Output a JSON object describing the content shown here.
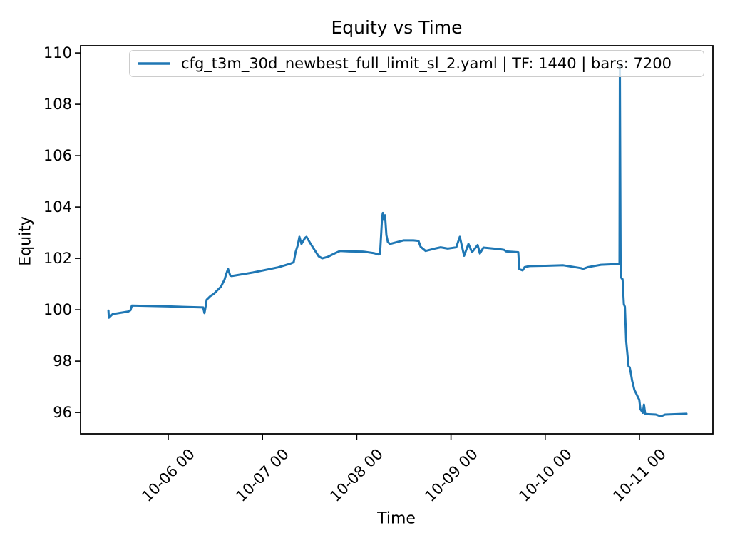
{
  "colors": {
    "line": "#1f77b4",
    "axis": "#000000",
    "legend_border": "#cccccc",
    "background": "#ffffff"
  },
  "chart_data": {
    "type": "line",
    "title": "Equity vs Time",
    "xlabel": "Time",
    "ylabel": "Equity",
    "legend_position": "upper center",
    "legend": [
      "cfg_t3m_30d_newbest_full_limit_sl_2.yaml | TF: 1440 | bars: 7200"
    ],
    "grid": false,
    "x_unit": "days since 10-06 00:00",
    "xlim": [
      -0.9304,
      5.7791
    ],
    "ylim": [
      95.17,
      110.28
    ],
    "x_ticks": [
      {
        "value": 0,
        "label": "10-06 00"
      },
      {
        "value": 1,
        "label": "10-07 00"
      },
      {
        "value": 2,
        "label": "10-08 00"
      },
      {
        "value": 3,
        "label": "10-09 00"
      },
      {
        "value": 4,
        "label": "10-10 00"
      },
      {
        "value": 5,
        "label": "10-11 00"
      }
    ],
    "y_ticks": [
      {
        "value": 96,
        "label": "96"
      },
      {
        "value": 98,
        "label": "98"
      },
      {
        "value": 100,
        "label": "100"
      },
      {
        "value": 102,
        "label": "102"
      },
      {
        "value": 104,
        "label": "104"
      },
      {
        "value": 106,
        "label": "106"
      },
      {
        "value": 108,
        "label": "108"
      },
      {
        "value": 110,
        "label": "110"
      }
    ],
    "series": [
      {
        "name": "cfg_t3m_30d_newbest_full_limit_sl_2.yaml | TF: 1440 | bars: 7200",
        "color": "#1f77b4",
        "points": [
          [
            -0.635,
            99.97
          ],
          [
            -0.63,
            99.69
          ],
          [
            -0.59,
            99.83
          ],
          [
            -0.424,
            99.93
          ],
          [
            -0.401,
            99.98
          ],
          [
            -0.386,
            100.16
          ],
          [
            0.0,
            100.13
          ],
          [
            0.371,
            100.09
          ],
          [
            0.384,
            99.87
          ],
          [
            0.393,
            100.05
          ],
          [
            0.408,
            100.39
          ],
          [
            0.446,
            100.53
          ],
          [
            0.484,
            100.62
          ],
          [
            0.522,
            100.76
          ],
          [
            0.56,
            100.9
          ],
          [
            0.598,
            101.18
          ],
          [
            0.613,
            101.36
          ],
          [
            0.635,
            101.59
          ],
          [
            0.658,
            101.33
          ],
          [
            0.673,
            101.31
          ],
          [
            0.9,
            101.45
          ],
          [
            1.165,
            101.65
          ],
          [
            1.301,
            101.8
          ],
          [
            1.331,
            101.85
          ],
          [
            1.352,
            102.25
          ],
          [
            1.374,
            102.5
          ],
          [
            1.392,
            102.84
          ],
          [
            1.414,
            102.56
          ],
          [
            1.452,
            102.8
          ],
          [
            1.467,
            102.84
          ],
          [
            1.505,
            102.6
          ],
          [
            1.543,
            102.38
          ],
          [
            1.596,
            102.08
          ],
          [
            1.634,
            102.0
          ],
          [
            1.694,
            102.06
          ],
          [
            1.77,
            102.2
          ],
          [
            1.823,
            102.29
          ],
          [
            1.921,
            102.27
          ],
          [
            2.073,
            102.26
          ],
          [
            2.186,
            102.2
          ],
          [
            2.232,
            102.15
          ],
          [
            2.247,
            102.18
          ],
          [
            2.269,
            103.6
          ],
          [
            2.277,
            103.77
          ],
          [
            2.288,
            103.5
          ],
          [
            2.3,
            103.68
          ],
          [
            2.315,
            102.9
          ],
          [
            2.33,
            102.64
          ],
          [
            2.352,
            102.56
          ],
          [
            2.413,
            102.62
          ],
          [
            2.496,
            102.7
          ],
          [
            2.602,
            102.7
          ],
          [
            2.655,
            102.68
          ],
          [
            2.678,
            102.45
          ],
          [
            2.731,
            102.29
          ],
          [
            2.829,
            102.38
          ],
          [
            2.89,
            102.43
          ],
          [
            2.965,
            102.38
          ],
          [
            3.003,
            102.4
          ],
          [
            3.056,
            102.43
          ],
          [
            3.094,
            102.84
          ],
          [
            3.139,
            102.1
          ],
          [
            3.185,
            102.56
          ],
          [
            3.223,
            102.24
          ],
          [
            3.283,
            102.52
          ],
          [
            3.306,
            102.19
          ],
          [
            3.344,
            102.42
          ],
          [
            3.51,
            102.36
          ],
          [
            3.563,
            102.33
          ],
          [
            3.586,
            102.27
          ],
          [
            3.714,
            102.24
          ],
          [
            3.725,
            101.58
          ],
          [
            3.76,
            101.53
          ],
          [
            3.782,
            101.66
          ],
          [
            3.835,
            101.7
          ],
          [
            4.002,
            101.71
          ],
          [
            4.191,
            101.73
          ],
          [
            4.38,
            101.62
          ],
          [
            4.402,
            101.59
          ],
          [
            4.455,
            101.66
          ],
          [
            4.591,
            101.75
          ],
          [
            4.78,
            101.78
          ],
          [
            4.788,
            101.78
          ],
          [
            4.792,
            109.5
          ],
          [
            4.8,
            101.3
          ],
          [
            4.811,
            101.22
          ],
          [
            4.821,
            101.19
          ],
          [
            4.834,
            100.22
          ],
          [
            4.846,
            100.11
          ],
          [
            4.859,
            98.77
          ],
          [
            4.884,
            97.8
          ],
          [
            4.896,
            97.76
          ],
          [
            4.909,
            97.52
          ],
          [
            4.922,
            97.24
          ],
          [
            4.947,
            96.87
          ],
          [
            4.96,
            96.78
          ],
          [
            4.985,
            96.59
          ],
          [
            4.998,
            96.5
          ],
          [
            5.01,
            96.13
          ],
          [
            5.036,
            95.99
          ],
          [
            5.048,
            96.31
          ],
          [
            5.061,
            95.94
          ],
          [
            5.174,
            95.92
          ],
          [
            5.227,
            95.85
          ],
          [
            5.272,
            95.92
          ],
          [
            5.499,
            95.95
          ]
        ]
      }
    ]
  }
}
